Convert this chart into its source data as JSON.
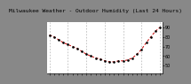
{
  "title": "Milwaukee Weather - Outdoor Humidity (Last 24 Hours)",
  "bg_color": "#888888",
  "plot_bg": "#ffffff",
  "line_color": "#cc0000",
  "marker_color": "#000000",
  "grid_color": "#999999",
  "y_values": [
    82,
    80,
    77,
    74,
    72,
    70,
    68,
    65,
    62,
    60,
    58,
    57,
    55,
    54,
    54,
    55,
    55,
    56,
    58,
    62,
    67,
    74,
    80,
    86,
    90
  ],
  "ylim": [
    42,
    95
  ],
  "yticks": [
    50,
    60,
    70,
    80,
    90
  ],
  "title_fontsize": 4.5,
  "tick_fontsize": 3.5,
  "grid_positions": [
    0,
    4,
    8,
    12,
    16,
    20,
    24
  ]
}
